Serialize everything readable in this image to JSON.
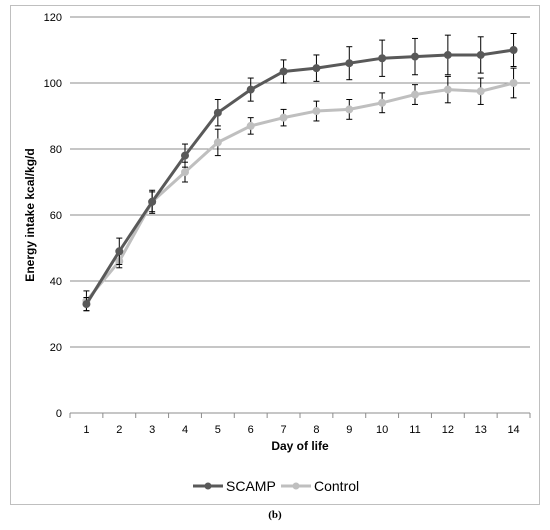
{
  "chart_data": {
    "type": "line",
    "xlabel": "Day of life",
    "ylabel": "Energy intake kcal/kg/d",
    "ylim": [
      0,
      120
    ],
    "yticks": [
      0,
      20,
      40,
      60,
      80,
      100,
      120
    ],
    "x": [
      1,
      2,
      3,
      4,
      5,
      6,
      7,
      8,
      9,
      10,
      11,
      12,
      13,
      14
    ],
    "grid": "horizontal",
    "legend_position": "bottom",
    "series": [
      {
        "name": "SCAMP",
        "color": "#595959",
        "values": [
          33,
          49,
          64,
          78,
          91,
          98,
          103.5,
          104.5,
          106,
          107.5,
          108,
          108.5,
          108.5,
          110
        ],
        "error": [
          2,
          4,
          3,
          3.5,
          4,
          3.5,
          3.5,
          4,
          5,
          5.5,
          5.5,
          6,
          5.5,
          5
        ]
      },
      {
        "name": "Control",
        "color": "#bfbfbf",
        "values": [
          34,
          46,
          64,
          73,
          82,
          87,
          89.5,
          91.5,
          92,
          94,
          96.5,
          98,
          97.5,
          100
        ],
        "error": [
          3,
          2,
          3.5,
          3,
          4,
          2.5,
          2.5,
          3,
          3,
          3,
          3,
          4,
          4,
          4.5
        ]
      }
    ]
  },
  "caption": "(b)"
}
